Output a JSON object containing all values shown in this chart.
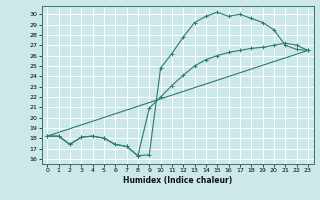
{
  "title": "",
  "xlabel": "Humidex (Indice chaleur)",
  "bg_color": "#cce8e8",
  "grid_color": "#ffffff",
  "line_color": "#2d7a6e",
  "xlim": [
    -0.5,
    23.5
  ],
  "ylim": [
    15.5,
    30.8
  ],
  "xticks": [
    0,
    1,
    2,
    3,
    4,
    5,
    6,
    7,
    8,
    9,
    10,
    11,
    12,
    13,
    14,
    15,
    16,
    17,
    18,
    19,
    20,
    21,
    22,
    23
  ],
  "yticks": [
    16,
    17,
    18,
    19,
    20,
    21,
    22,
    23,
    24,
    25,
    26,
    27,
    28,
    29,
    30
  ],
  "line1_x": [
    0,
    1,
    2,
    3,
    4,
    5,
    6,
    7,
    8,
    9,
    10,
    11,
    12,
    13,
    14,
    15,
    16,
    17,
    18,
    19,
    20,
    21,
    22,
    23
  ],
  "line1_y": [
    18.2,
    18.2,
    17.4,
    18.1,
    18.2,
    18.0,
    17.4,
    17.2,
    16.3,
    16.4,
    24.8,
    26.2,
    27.8,
    29.2,
    29.8,
    30.2,
    29.8,
    30.0,
    29.6,
    29.2,
    28.5,
    27.0,
    26.6,
    26.5
  ],
  "line2_x": [
    0,
    23
  ],
  "line2_y": [
    18.2,
    26.5
  ],
  "line3_x": [
    0,
    1,
    2,
    3,
    4,
    5,
    6,
    7,
    8,
    9,
    10,
    11,
    12,
    13,
    14,
    15,
    16,
    17,
    18,
    19,
    20,
    21,
    22,
    23
  ],
  "line3_y": [
    18.2,
    18.2,
    17.4,
    18.1,
    18.2,
    18.0,
    17.4,
    17.2,
    16.3,
    20.9,
    22.0,
    23.1,
    24.1,
    25.0,
    25.6,
    26.0,
    26.3,
    26.5,
    26.7,
    26.8,
    27.0,
    27.2,
    27.0,
    26.5
  ],
  "xlabel_fontsize": 5.5,
  "tick_fontsize": 4.5
}
